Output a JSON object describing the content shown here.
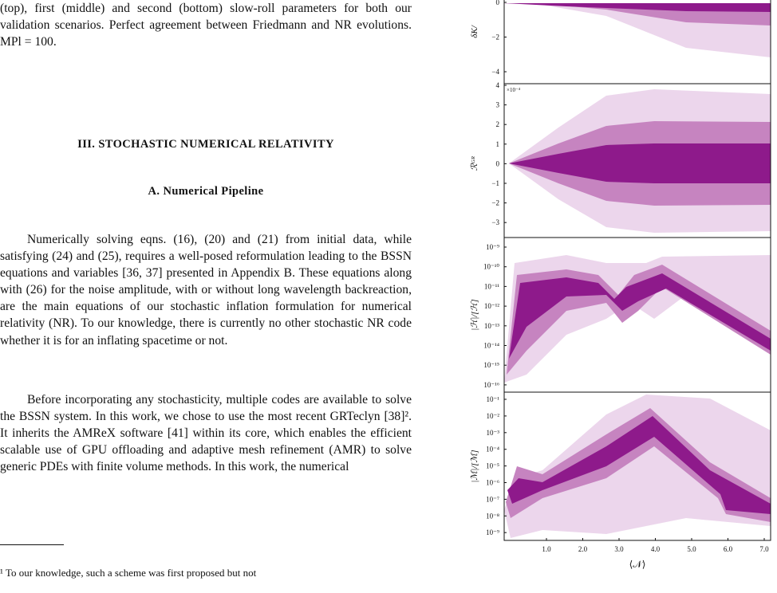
{
  "caption": "(top), first (middle) and second (bottom) slow-roll parameters for both our validation scenarios. Perfect agreement between Friedmann and NR evolutions. MPl = 100.",
  "section": "III.   STOCHASTIC NUMERICAL RELATIVITY",
  "subsection": "A.   Numerical Pipeline",
  "paragraphs": [
    "Numerically solving eqns. (16), (20) and (21) from initial data, while satisfying (24) and (25), requires a well-posed reformulation leading to the BSSN equations and variables [36, 37] presented in Appendix B. These equations along with (26) for the noise amplitude, with or without long wavelength backreaction, are the main equations of our stochastic inflation formulation for numerical relativity (NR). To our knowledge, there is currently no other stochastic NR code whether it is for an inflating spacetime or not.",
    "Before incorporating any stochasticity, multiple codes are available to solve the BSSN system. In this work, we chose to use the most recent GRTeclyn [38]². It inherits the AMReX software [41] within its core, which enables the efficient scalable use of GPU offloading and adaptive mesh refinement (AMR) to solve generic PDEs with finite volume methods. In this work, the numerical"
  ],
  "footnote": "¹ To our knowledge, such a scheme was first proposed but not",
  "figure": {
    "panels": [
      {
        "ylabel": "δK/",
        "ticks": [
          "0",
          "−2",
          "−4"
        ]
      },
      {
        "ylabel": "ℛᴳᴿ",
        "multiplier": "×10⁻⁴",
        "ticks": [
          "4",
          "3",
          "2",
          "1",
          "0",
          "−1",
          "−2",
          "−3"
        ]
      },
      {
        "ylabel": "|ℋ|/[ℋ]",
        "ticks": [
          "10⁻⁹",
          "10⁻¹⁰",
          "10⁻¹¹",
          "10⁻¹²",
          "10⁻¹³",
          "10⁻¹⁴",
          "10⁻¹⁵",
          "10⁻¹⁶"
        ]
      },
      {
        "ylabel": "|ℳ|/[ℳ]",
        "ticks": [
          "10⁻¹",
          "10⁻²",
          "10⁻³",
          "10⁻⁴",
          "10⁻⁵",
          "10⁻⁶",
          "10⁻⁷",
          "10⁻⁸",
          "10⁻⁹"
        ]
      }
    ],
    "xticks": [
      "1.0",
      "2.0",
      "3.0",
      "4.0",
      "5.0",
      "6.0",
      "7.0"
    ],
    "xlabel": "⟨𝒩⟩"
  }
}
